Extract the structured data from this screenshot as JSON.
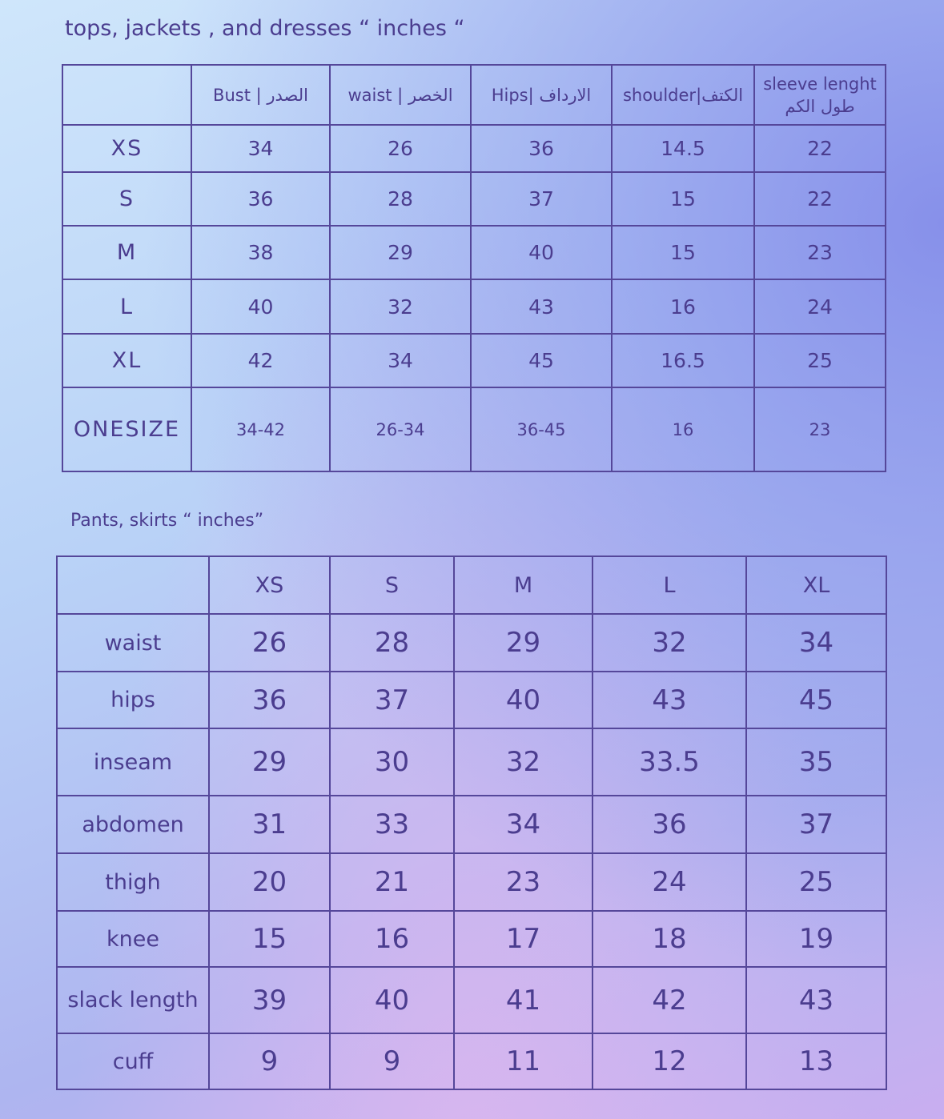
{
  "tops": {
    "title": "tops, jackets , and dresses “ inches “",
    "headers": [
      "",
      "Bust | الصدر",
      "waist | الخصر",
      "Hips| الارداف",
      "shoulder|الكتف",
      "sleeve lenght طول الكم"
    ],
    "rows": [
      {
        "size": "XS",
        "values": [
          "34",
          "26",
          "36",
          "14.5",
          "22"
        ]
      },
      {
        "size": "S",
        "values": [
          "36",
          "28",
          "37",
          "15",
          "22"
        ]
      },
      {
        "size": "M",
        "values": [
          "38",
          "29",
          "40",
          "15",
          "23"
        ]
      },
      {
        "size": "L",
        "values": [
          "40",
          "32",
          "43",
          "16",
          "24"
        ]
      },
      {
        "size": "XL",
        "values": [
          "42",
          "34",
          "45",
          "16.5",
          "25"
        ]
      },
      {
        "size": "ONESIZE",
        "values": [
          "34-42",
          "26-34",
          "36-45",
          "16",
          "23"
        ]
      }
    ]
  },
  "pants": {
    "title": "Pants, skirts “ inches”",
    "headers": [
      "",
      "XS",
      "S",
      "M",
      "L",
      "XL"
    ],
    "rows": [
      {
        "label": "waist",
        "values": [
          "26",
          "28",
          "29",
          "32",
          "34"
        ]
      },
      {
        "label": "hips",
        "values": [
          "36",
          "37",
          "40",
          "43",
          "45"
        ]
      },
      {
        "label": "inseam",
        "values": [
          "29",
          "30",
          "32",
          "33.5",
          "35"
        ]
      },
      {
        "label": "abdomen",
        "values": [
          "31",
          "33",
          "34",
          "36",
          "37"
        ]
      },
      {
        "label": "thigh",
        "values": [
          "20",
          "21",
          "23",
          "24",
          "25"
        ]
      },
      {
        "label": "knee",
        "values": [
          "15",
          "16",
          "17",
          "18",
          "19"
        ]
      },
      {
        "label": "slack length",
        "values": [
          "39",
          "40",
          "41",
          "42",
          "43"
        ]
      },
      {
        "label": "cuff",
        "values": [
          "9",
          "9",
          "11",
          "12",
          "13"
        ]
      }
    ]
  }
}
